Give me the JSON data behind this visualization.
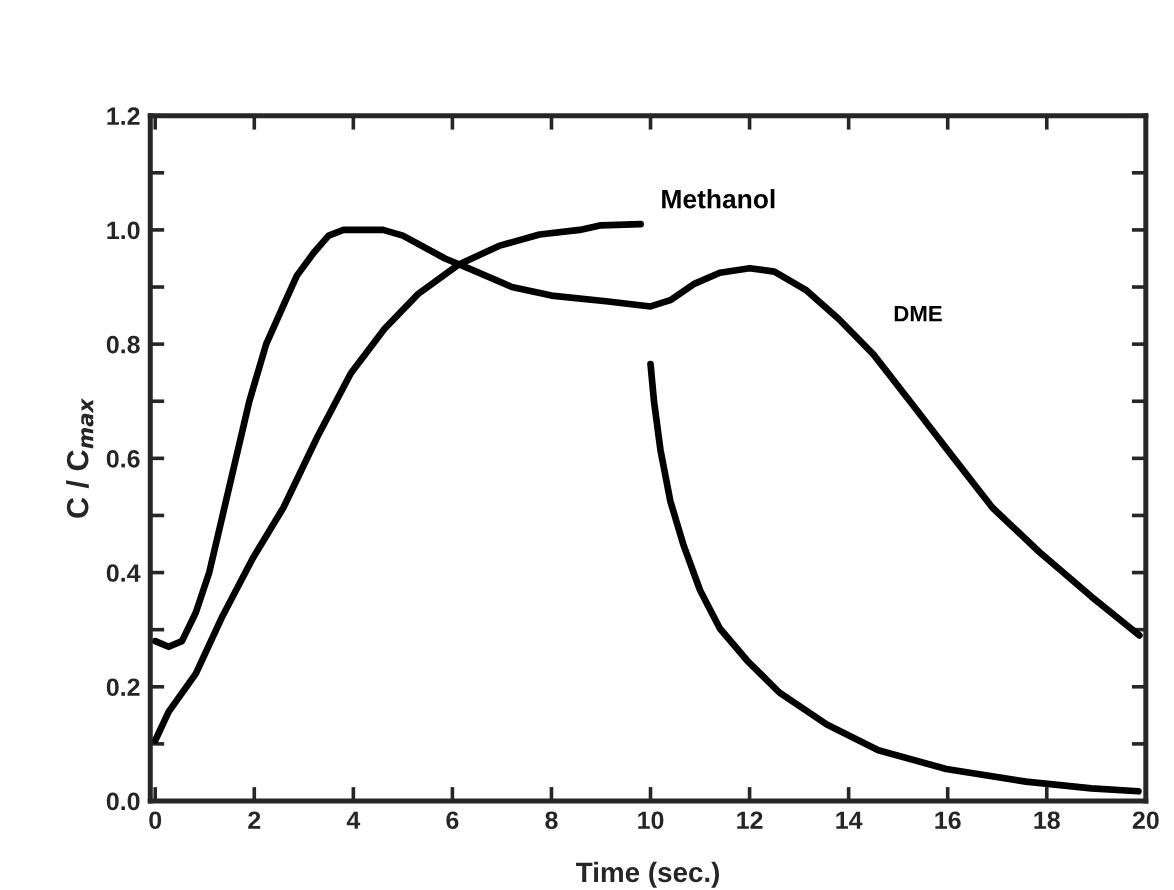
{
  "chart_data": {
    "type": "line",
    "xlabel": "Time (sec.)",
    "ylabel": "C / C$_{max}$",
    "xlim": [
      -0.1,
      20
    ],
    "ylim": [
      0,
      1.2
    ],
    "xticks": [
      0,
      2,
      4,
      6,
      8,
      10,
      12,
      14,
      16,
      18,
      20
    ],
    "yticks": [
      {
        "value": 0,
        "label": "0.0"
      },
      {
        "value": 0.1,
        "label": null
      },
      {
        "value": 0.2,
        "label": "0.2"
      },
      {
        "value": 0.3,
        "label": null
      },
      {
        "value": 0.4,
        "label": "0.4"
      },
      {
        "value": 0.5,
        "label": null
      },
      {
        "value": 0.6,
        "label": "0.6"
      },
      {
        "value": 0.7,
        "label": null
      },
      {
        "value": 0.8,
        "label": "0.8"
      },
      {
        "value": 0.9,
        "label": null
      },
      {
        "value": 1.0,
        "label": "1.0"
      },
      {
        "value": 1.1,
        "label": null
      },
      {
        "value": 1.2,
        "label": "1.2"
      }
    ],
    "grid": false,
    "legend": false,
    "line_style": "solid",
    "marker": "none",
    "series": [
      {
        "name": "DME",
        "color": "#000000",
        "x": [
          0,
          0.27,
          0.54,
          0.82,
          1.09,
          1.36,
          1.63,
          1.9,
          2.24,
          2.6,
          2.86,
          3.2,
          3.5,
          3.8,
          4.6,
          5.0,
          5.85,
          6.4,
          7.2,
          8.0,
          9.1,
          10,
          10.4,
          10.87,
          11.4,
          12,
          12.5,
          13.15,
          13.8,
          14.5,
          15.3,
          16.1,
          16.9,
          17.85,
          18.9,
          19.87
        ],
        "values": [
          0.28,
          0.27,
          0.28,
          0.33,
          0.4,
          0.5,
          0.6,
          0.7,
          0.8,
          0.87,
          0.92,
          0.96,
          0.99,
          1.0,
          1.0,
          0.99,
          0.95,
          0.93,
          0.9,
          0.885,
          0.875,
          0.866,
          0.877,
          0.905,
          0.925,
          0.933,
          0.927,
          0.894,
          0.844,
          0.782,
          0.693,
          0.603,
          0.514,
          0.436,
          0.358,
          0.29
        ]
      },
      {
        "name": "Methanol",
        "color": "#000000",
        "x": [
          0,
          0.27,
          0.82,
          1.36,
          1.97,
          2.59,
          3.27,
          3.95,
          4.63,
          5.31,
          6.12,
          6.94,
          7.76,
          8.57,
          9.0,
          9.8
        ],
        "values": [
          0.106,
          0.156,
          0.223,
          0.324,
          0.425,
          0.514,
          0.637,
          0.749,
          0.827,
          0.888,
          0.939,
          0.972,
          0.992,
          1.0,
          1.008,
          1.01
        ]
      },
      {
        "color": "#000000",
        "x": [
          10,
          10.07,
          10.2,
          10.4,
          10.67,
          11.0,
          11.4,
          11.95,
          12.6,
          13.56,
          14.6,
          15.97,
          17.58,
          18.9,
          19.85
        ],
        "values": [
          0.765,
          0.7,
          0.615,
          0.525,
          0.447,
          0.369,
          0.302,
          0.246,
          0.19,
          0.134,
          0.089,
          0.056,
          0.034,
          0.022,
          0.017
        ]
      }
    ]
  }
}
